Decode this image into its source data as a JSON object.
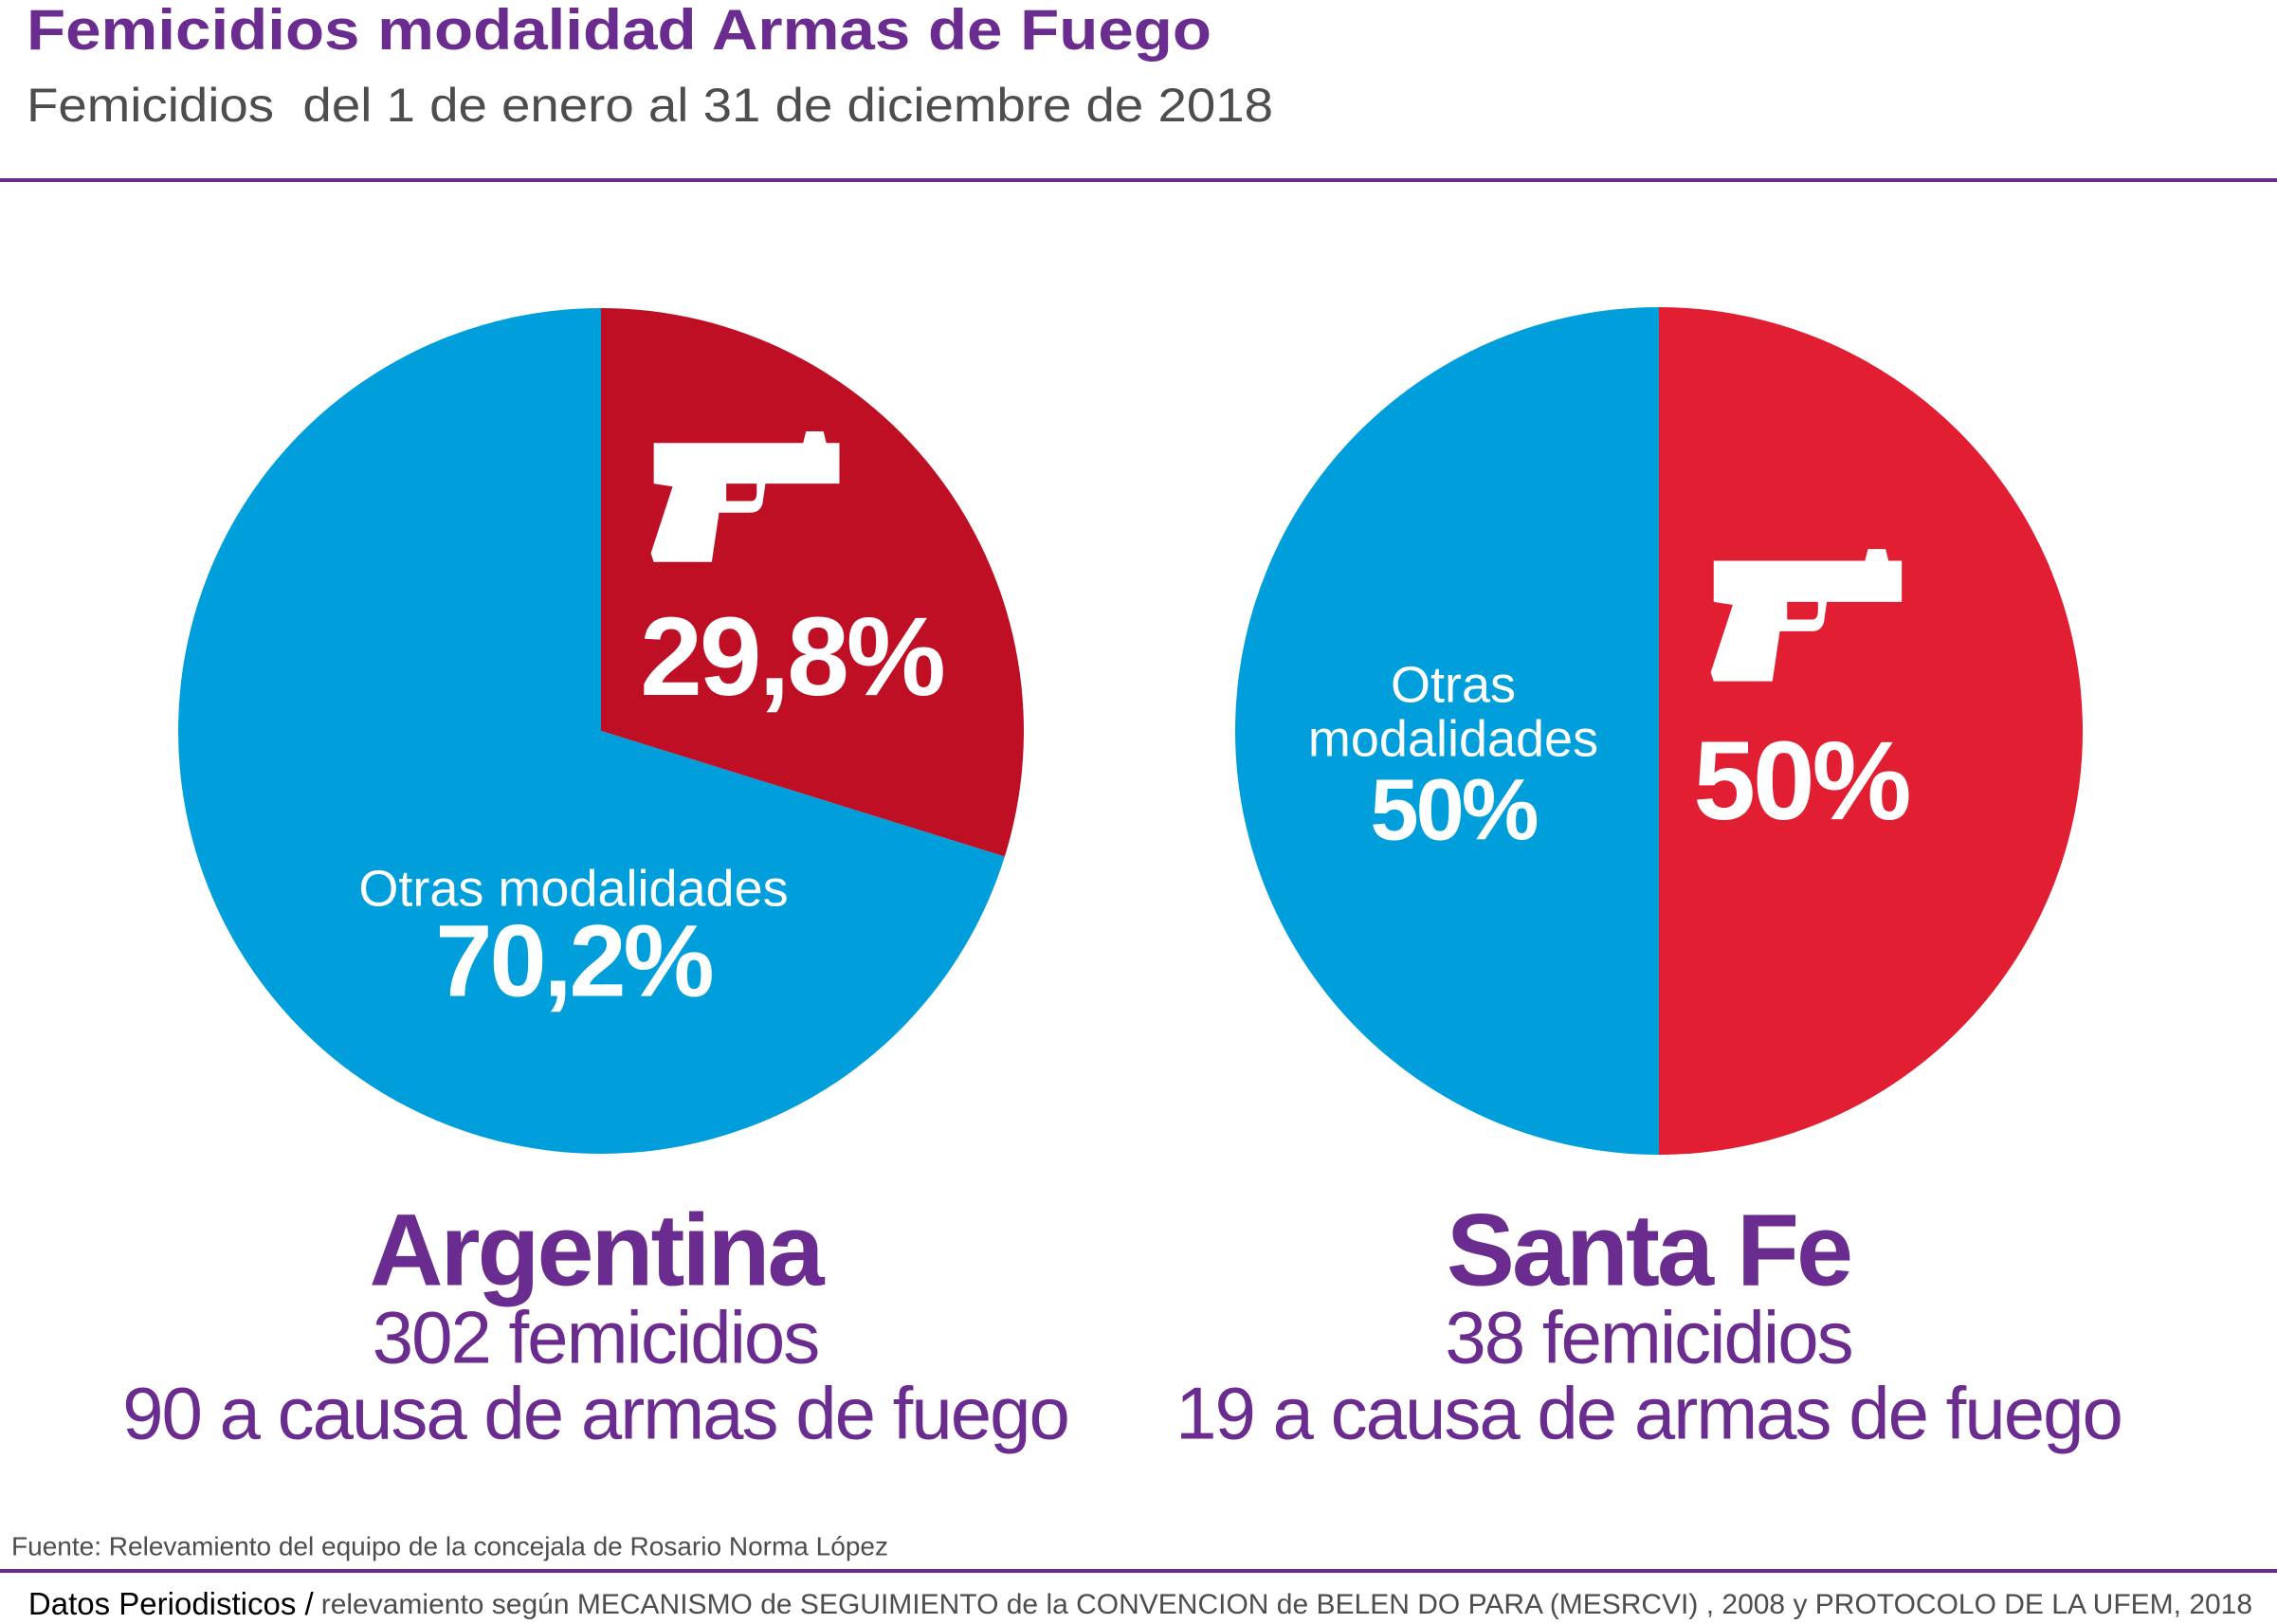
{
  "header": {
    "title": "Femicidios modalidad Armas de Fuego",
    "subtitle": "Femicidios  del 1 de enero al 31 de diciembre de 2018"
  },
  "chart_data": [
    {
      "type": "pie",
      "title": "Argentina",
      "subtitle": [
        "302 femicidios",
        "90 a causa de armas de fuego"
      ],
      "categories": [
        null,
        "Otras modalidades"
      ],
      "values": [
        29.8,
        70.2
      ],
      "value_labels": [
        "29,8%",
        "70,2%"
      ],
      "colors": [
        "#be0f25",
        "#009fdb"
      ]
    },
    {
      "type": "pie",
      "title": "Santa Fe",
      "subtitle": [
        "38 femicidios",
        "19 a causa de armas de fuego"
      ],
      "categories": [
        null,
        "Otras modalidades"
      ],
      "values": [
        50,
        50
      ],
      "value_labels": [
        "50%",
        "50%"
      ],
      "colors": [
        "#e21e32",
        "#009fdb"
      ]
    }
  ],
  "source": "Fuente: Relevamiento del equipo de la concejala de Rosario Norma López",
  "footer": {
    "brand": "Datos Periodisticos /",
    "text": "relevamiento según MECANISMO de SEGUIMIENTO de la CONVENCION de BELEN DO PARA (MESRCVI) , 2008 y PROTOCOLO DE LA UFEM, 2018"
  }
}
